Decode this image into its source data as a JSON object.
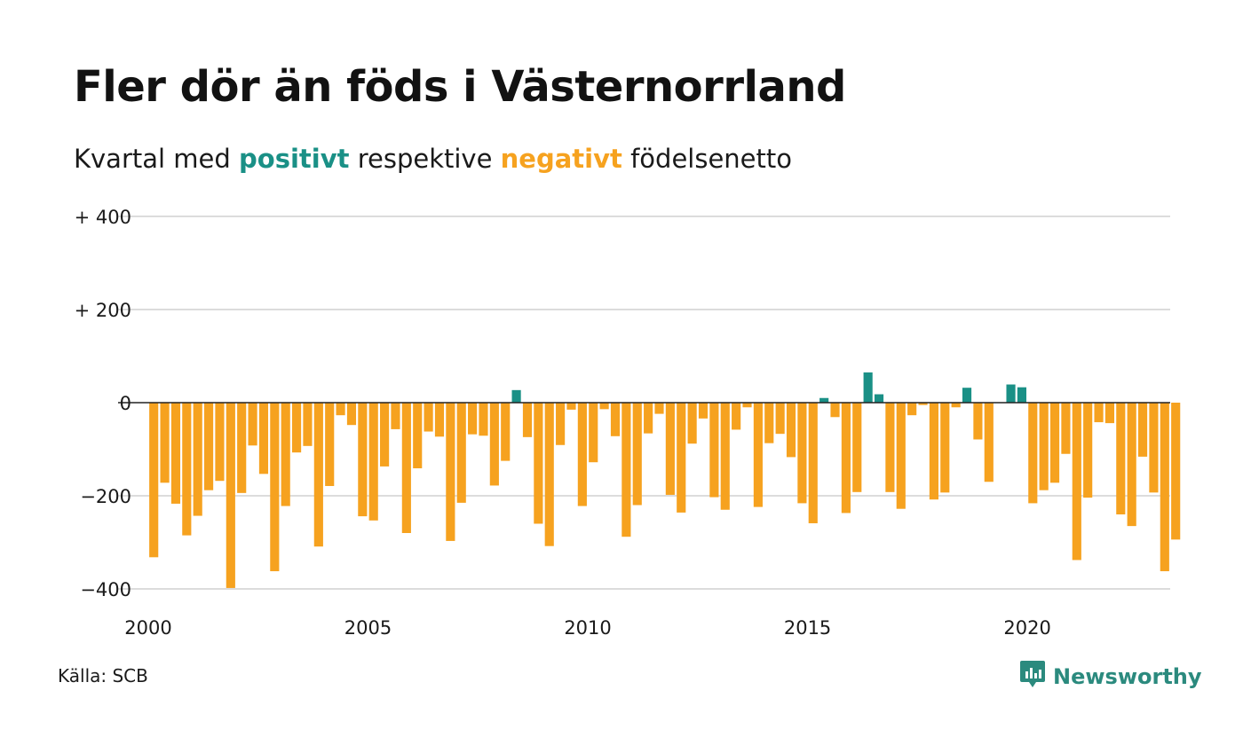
{
  "title": "Fler dör än föds i Västernorrland",
  "subtitle": {
    "prefix": "Kvartal med",
    "positive_word": "positivt",
    "middle": "respektive",
    "negative_word": "negativt",
    "suffix": "födelsenetto"
  },
  "source": "Källa: SCB",
  "brand": {
    "name": "Newsworthy",
    "icon": "newsworthy-chart-bubble-icon"
  },
  "colors": {
    "positive": "#1a9086",
    "negative": "#f6a21f",
    "gridline": "#dcdcdc",
    "zeroline": "#222222",
    "brand": "#2b8a7e"
  },
  "chart_data": {
    "type": "bar",
    "title": "Fler dör än föds i Västernorrland",
    "xlabel": "",
    "ylabel": "",
    "x_start_year": 2000,
    "periods_per_year": 4,
    "ylim": [
      -400,
      400
    ],
    "xlim": [
      2000,
      2023.25
    ],
    "y_ticks": [
      {
        "value": 400,
        "label": "+ 400"
      },
      {
        "value": 200,
        "label": "+ 200"
      },
      {
        "value": 0,
        "label": "0"
      },
      {
        "value": -200,
        "label": "−200"
      },
      {
        "value": -400,
        "label": "−400"
      }
    ],
    "x_ticks": [
      {
        "value": 2000,
        "label": "2000"
      },
      {
        "value": 2005,
        "label": "2005"
      },
      {
        "value": 2010,
        "label": "2010"
      },
      {
        "value": 2015,
        "label": "2015"
      },
      {
        "value": 2020,
        "label": "2020"
      }
    ],
    "grid": true,
    "series": [
      {
        "values": [
          -332,
          -172,
          -217,
          -285,
          -243,
          -188,
          -168,
          -398,
          -194,
          -92,
          -153,
          -362,
          -222,
          -107,
          -93,
          -309,
          -179,
          -27,
          -48,
          -244,
          -253,
          -137,
          -57,
          -280,
          -141,
          -62,
          -73,
          -297,
          -215,
          -68,
          -71,
          -178,
          -125,
          27,
          -74,
          -260,
          -308,
          -91,
          -15,
          -222,
          -128,
          -14,
          -72,
          -288,
          -220,
          -66,
          -24,
          -198,
          -236,
          -88,
          -34,
          -203,
          -230,
          -58,
          -10,
          -224,
          -87,
          -67,
          -117,
          -216,
          -259,
          10,
          -31,
          -237,
          -192,
          65,
          18,
          -192,
          -228,
          -27,
          -5,
          -208,
          -193,
          -10,
          32,
          -79,
          -170,
          0,
          39,
          33,
          -216,
          -188,
          -172,
          -110,
          -338,
          -204,
          -42,
          -44,
          -240,
          -265,
          -116,
          -193,
          -362,
          -294
        ]
      }
    ]
  }
}
